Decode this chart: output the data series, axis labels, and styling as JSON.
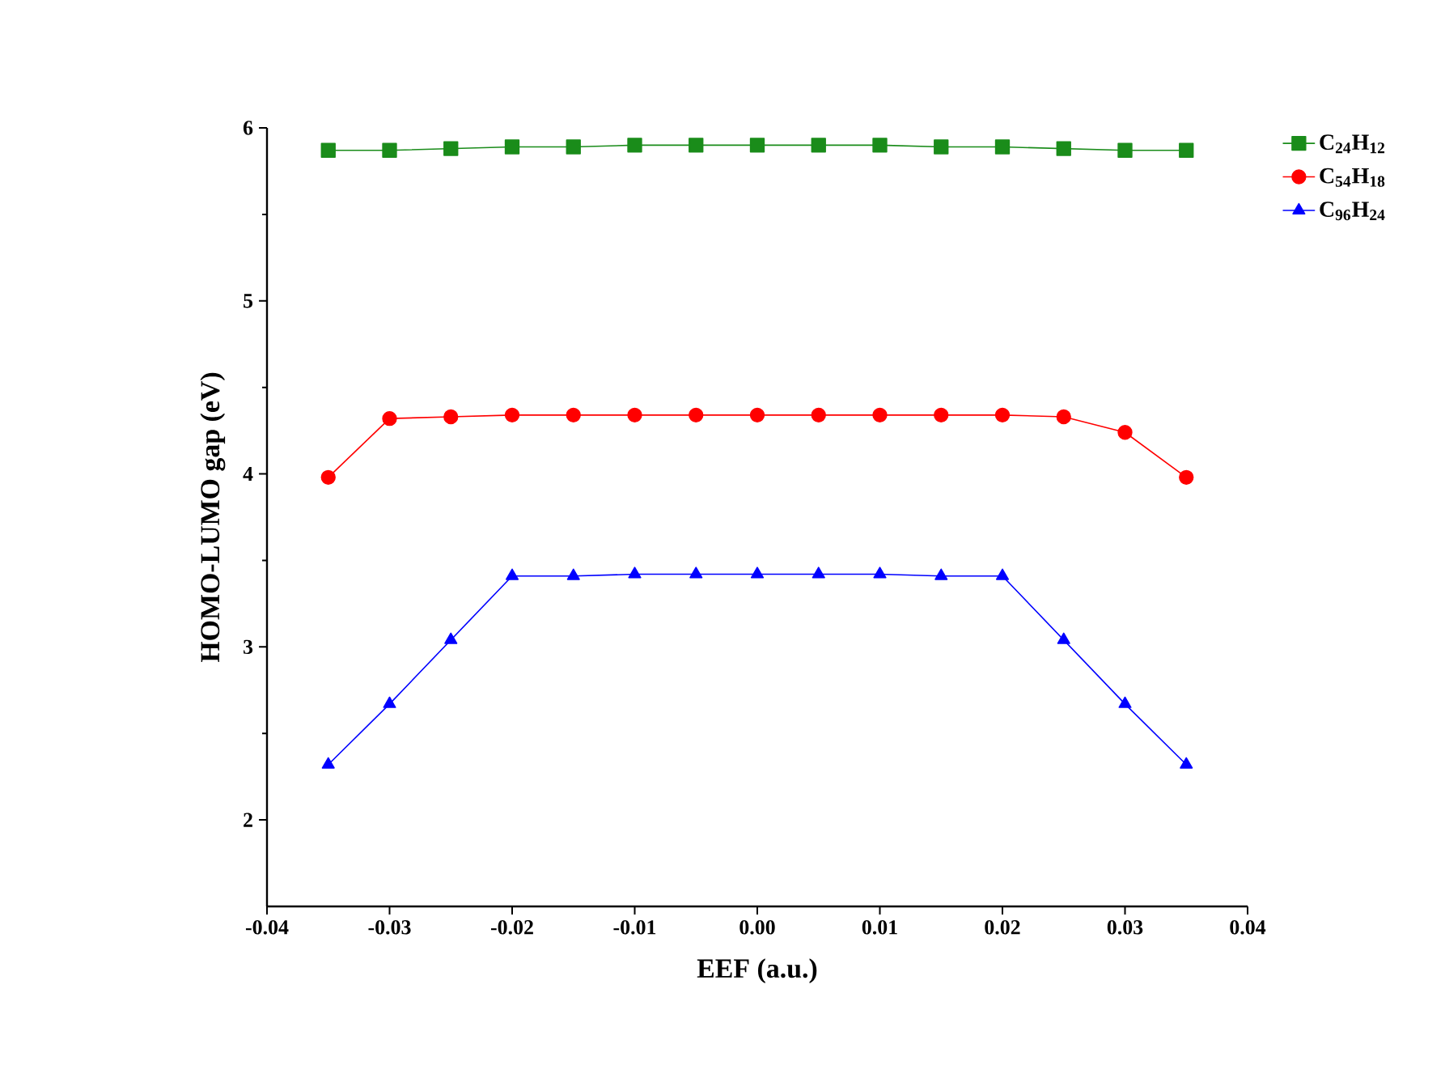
{
  "chart_data": {
    "type": "line",
    "xlabel": "EEF (a.u.)",
    "ylabel": "HOMO-LUMO gap (eV)",
    "x": [
      -0.035,
      -0.03,
      -0.025,
      -0.02,
      -0.015,
      -0.01,
      -0.005,
      0.0,
      0.005,
      0.01,
      0.015,
      0.02,
      0.025,
      0.03,
      0.035
    ],
    "series": [
      {
        "name": "C$_{24}$H$_{12}$",
        "color": "#1a8c1a",
        "marker": "square",
        "values": [
          5.87,
          5.87,
          5.88,
          5.89,
          5.89,
          5.9,
          5.9,
          5.9,
          5.9,
          5.9,
          5.89,
          5.89,
          5.88,
          5.87,
          5.87
        ]
      },
      {
        "name": "C$_{54}$H$_{18}$",
        "color": "#ff0000",
        "marker": "circle",
        "values": [
          3.98,
          4.32,
          4.33,
          4.34,
          4.34,
          4.34,
          4.34,
          4.34,
          4.34,
          4.34,
          4.34,
          4.34,
          4.33,
          4.24,
          3.98
        ]
      },
      {
        "name": "C$_{96}$H$_{24}$",
        "color": "#0000ff",
        "marker": "triangle",
        "values": [
          2.32,
          2.67,
          3.04,
          3.41,
          3.41,
          3.42,
          3.42,
          3.42,
          3.42,
          3.42,
          3.41,
          3.41,
          3.04,
          2.67,
          2.32
        ]
      }
    ],
    "xlim": [
      -0.04,
      0.04
    ],
    "xticks": [
      {
        "value": -0.04,
        "label": "-0.04"
      },
      {
        "value": -0.03,
        "label": "-0.03"
      },
      {
        "value": -0.02,
        "label": "-0.02"
      },
      {
        "value": -0.01,
        "label": "-0.01"
      },
      {
        "value": 0.0,
        "label": "0.00"
      },
      {
        "value": 0.01,
        "label": "0.01"
      },
      {
        "value": 0.02,
        "label": "0.02"
      },
      {
        "value": 0.03,
        "label": "0.03"
      },
      {
        "value": 0.04,
        "label": "0.04"
      }
    ],
    "ylim": [
      1.5,
      6
    ],
    "yticks": [
      2,
      3,
      4,
      5,
      6
    ],
    "legend": "top right",
    "line_style": "solid",
    "grid": false
  }
}
